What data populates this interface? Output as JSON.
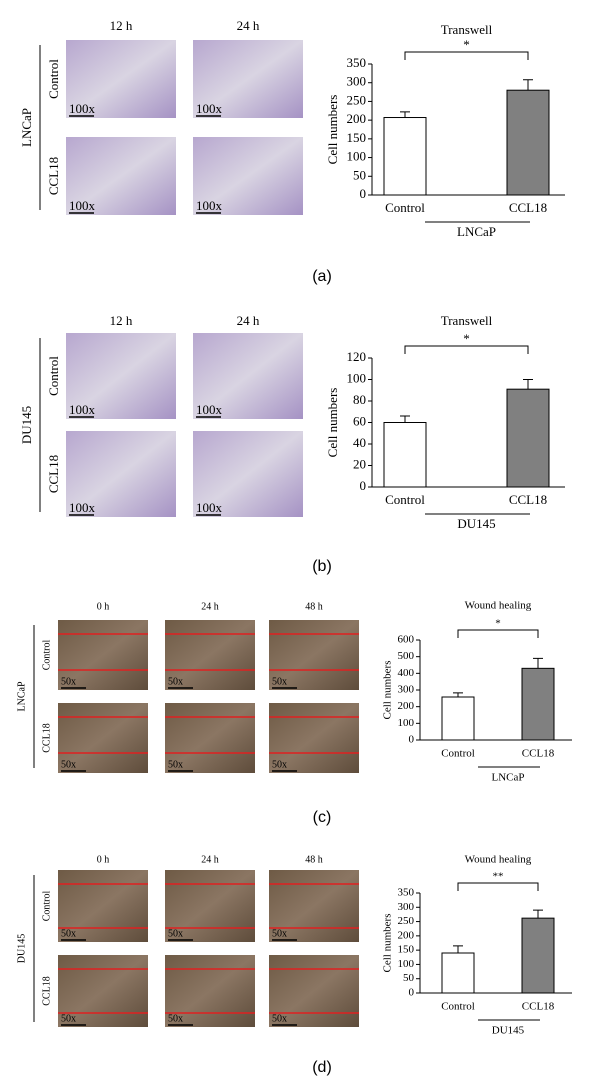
{
  "panels": [
    {
      "label": "(a)",
      "cell_line": "LNCaP",
      "columns": [
        "12 h",
        "24 h"
      ],
      "rows": [
        "Control",
        "CCL18"
      ],
      "magnification": "100x"
    },
    {
      "label": "(b)",
      "cell_line": "DU145",
      "columns": [
        "12 h",
        "24 h"
      ],
      "rows": [
        "Control",
        "CCL18"
      ],
      "magnification": "100x"
    },
    {
      "label": "(c)",
      "cell_line": "LNCaP",
      "columns": [
        "0 h",
        "24 h",
        "48 h"
      ],
      "rows": [
        "Control",
        "CCL18"
      ],
      "magnification": "50x"
    },
    {
      "label": "(d)",
      "cell_line": "DU145",
      "columns": [
        "0 h",
        "24 h",
        "48 h"
      ],
      "rows": [
        "Control",
        "CCL18"
      ],
      "magnification": "50x"
    }
  ],
  "chart_data": [
    {
      "type": "bar",
      "title": "Transwell",
      "ylabel": "Cell numbers",
      "categories": [
        "Control",
        "CCL18"
      ],
      "group_label": "LNCaP",
      "significance": "*",
      "values": [
        207,
        280
      ],
      "errors": [
        15,
        28
      ],
      "colors": [
        "#ffffff",
        "#808080"
      ],
      "ylim": [
        0,
        350
      ],
      "yticks": [
        0,
        50,
        100,
        150,
        200,
        250,
        300,
        350
      ]
    },
    {
      "type": "bar",
      "title": "Transwell",
      "ylabel": "Cell numbers",
      "categories": [
        "Control",
        "CCL18"
      ],
      "group_label": "DU145",
      "significance": "*",
      "values": [
        60,
        91
      ],
      "errors": [
        6,
        9
      ],
      "colors": [
        "#ffffff",
        "#808080"
      ],
      "ylim": [
        0,
        120
      ],
      "yticks": [
        0,
        20,
        40,
        60,
        80,
        100,
        120
      ]
    },
    {
      "type": "bar",
      "title": "Wound healing",
      "ylabel": "Cell numbers",
      "categories": [
        "Control",
        "CCL18"
      ],
      "group_label": "LNCaP",
      "significance": "*",
      "values": [
        258,
        430
      ],
      "errors": [
        25,
        60
      ],
      "colors": [
        "#ffffff",
        "#808080"
      ],
      "ylim": [
        0,
        600
      ],
      "yticks": [
        0,
        100,
        200,
        300,
        400,
        500,
        600
      ]
    },
    {
      "type": "bar",
      "title": "Wound healing",
      "ylabel": "Cell numbers",
      "categories": [
        "Control",
        "CCL18"
      ],
      "group_label": "DU145",
      "significance": "**",
      "values": [
        140,
        262
      ],
      "errors": [
        25,
        28
      ],
      "colors": [
        "#ffffff",
        "#808080"
      ],
      "ylim": [
        0,
        350
      ],
      "yticks": [
        0,
        50,
        100,
        150,
        200,
        250,
        300,
        350
      ]
    }
  ]
}
